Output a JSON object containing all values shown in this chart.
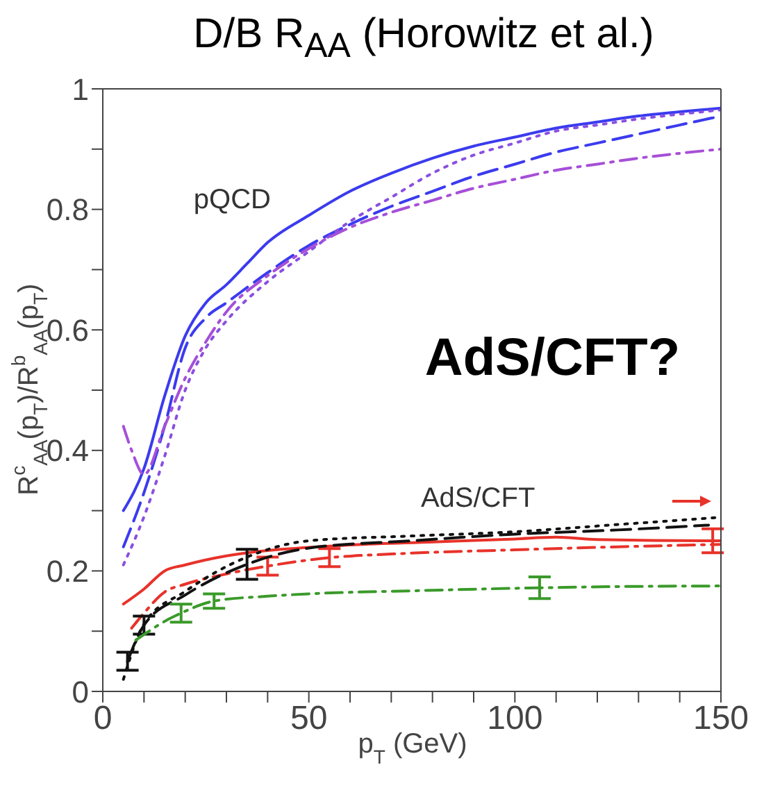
{
  "chart_data": {
    "type": "line",
    "title": "D/B R$_{AA}$ (Horowitz et al.)",
    "xlabel": "p$_{T}$ (GeV)",
    "ylabel": "R$^{c}$$_{AA}$(p$_{T}$)/R$^{b}$$_{AA}$(p$_{T}$)",
    "xlim": [
      0,
      150
    ],
    "ylim": [
      0,
      1
    ],
    "xticks": [
      0,
      {
        "value": 10,
        "label": null
      },
      {
        "value": 20,
        "label": null
      },
      {
        "value": 30,
        "label": null
      },
      {
        "value": 40,
        "label": null
      },
      50,
      {
        "value": 60,
        "label": null
      },
      {
        "value": 70,
        "label": null
      },
      {
        "value": 80,
        "label": null
      },
      {
        "value": 90,
        "label": null
      },
      100,
      {
        "value": 110,
        "label": null
      },
      {
        "value": 120,
        "label": null
      },
      {
        "value": 130,
        "label": null
      },
      {
        "value": 140,
        "label": null
      },
      150
    ],
    "yticks": [
      0,
      {
        "value": 0.1,
        "label": null
      },
      0.2,
      {
        "value": 0.3,
        "label": null
      },
      0.4,
      {
        "value": 0.5,
        "label": null
      },
      0.6,
      {
        "value": 0.7,
        "label": null
      },
      0.8,
      {
        "value": 0.9,
        "label": null
      },
      1
    ],
    "marker": "none",
    "annotations": [
      "pQCD",
      "AdS/CFT",
      "AdS/CFT?"
    ],
    "series": [
      {
        "color": "#3b3bef",
        "line_style": "solid",
        "x": [
          5,
          10,
          15,
          20,
          25,
          30,
          35,
          40,
          50,
          60,
          70,
          80,
          90,
          100,
          110,
          120,
          130,
          140,
          150
        ],
        "values": [
          0.3,
          0.37,
          0.49,
          0.59,
          0.645,
          0.675,
          0.71,
          0.745,
          0.79,
          0.83,
          0.86,
          0.885,
          0.905,
          0.92,
          0.935,
          0.945,
          0.955,
          0.962,
          0.968
        ]
      },
      {
        "color": "#3b3bef",
        "line_style": "dashed",
        "x": [
          5,
          10,
          15,
          20,
          25,
          30,
          40,
          50,
          60,
          70,
          80,
          90,
          100,
          110,
          120,
          130,
          140,
          150
        ],
        "values": [
          0.24,
          0.33,
          0.44,
          0.57,
          0.62,
          0.645,
          0.695,
          0.74,
          0.775,
          0.805,
          0.83,
          0.855,
          0.875,
          0.895,
          0.91,
          0.925,
          0.94,
          0.955
        ]
      },
      {
        "color": "#8a4fe0",
        "line_style": "dotted",
        "x": [
          5,
          10,
          15,
          20,
          25,
          30,
          40,
          50,
          60,
          70,
          80,
          90,
          100,
          110,
          120,
          130,
          140,
          150
        ],
        "values": [
          0.21,
          0.29,
          0.39,
          0.5,
          0.57,
          0.615,
          0.68,
          0.73,
          0.78,
          0.82,
          0.86,
          0.89,
          0.91,
          0.93,
          0.94,
          0.95,
          0.958,
          0.965
        ]
      },
      {
        "color": "#a64fd8",
        "line_style": "dashdot",
        "x": [
          5,
          7,
          10,
          15,
          20,
          25,
          30,
          40,
          50,
          60,
          70,
          80,
          90,
          100,
          110,
          120,
          130,
          140,
          150
        ],
        "values": [
          0.44,
          0.4,
          0.36,
          0.44,
          0.52,
          0.58,
          0.63,
          0.69,
          0.735,
          0.77,
          0.795,
          0.815,
          0.835,
          0.85,
          0.865,
          0.875,
          0.885,
          0.893,
          0.9
        ]
      },
      {
        "color": "#e8322a",
        "line_style": "solid",
        "x": [
          5,
          10,
          15,
          20,
          30,
          40,
          50,
          60,
          80,
          100,
          110,
          120,
          148,
          150
        ],
        "values": [
          0.145,
          0.17,
          0.2,
          0.21,
          0.225,
          0.234,
          0.239,
          0.243,
          0.248,
          0.253,
          0.256,
          0.252,
          0.25,
          0.25
        ],
        "errors": [
          null,
          null,
          null,
          null,
          null,
          null,
          null,
          null,
          null,
          null,
          null,
          null,
          0.02,
          null
        ]
      },
      {
        "color": "#e8322a",
        "line_style": "dashdot",
        "x": [
          7,
          10,
          15,
          20,
          30,
          40,
          55,
          70,
          100,
          125,
          150
        ],
        "values": [
          0.105,
          0.13,
          0.165,
          0.178,
          0.195,
          0.208,
          0.222,
          0.228,
          0.235,
          0.24,
          0.244
        ],
        "errors": [
          null,
          null,
          null,
          null,
          null,
          0.015,
          0.015,
          null,
          null,
          null,
          null
        ]
      },
      {
        "color": "#111111",
        "line_style": "dotted",
        "x": [
          5,
          10,
          20,
          35,
          50,
          75,
          100,
          125,
          150
        ],
        "values": [
          0.02,
          0.112,
          0.166,
          0.223,
          0.25,
          0.258,
          0.265,
          0.277,
          0.289
        ]
      },
      {
        "color": "#111111",
        "line_style": "dashed",
        "x": [
          6,
          10,
          20,
          35,
          50,
          75,
          100,
          125,
          147
        ],
        "values": [
          0.05,
          0.11,
          0.16,
          0.211,
          0.238,
          0.25,
          0.261,
          0.268,
          0.276
        ],
        "errors": [
          0.015,
          0.015,
          null,
          0.025,
          null,
          null,
          null,
          null,
          null
        ]
      },
      {
        "color": "#3a9a2a",
        "line_style": "dashdot",
        "x": [
          8,
          16,
          19,
          27,
          40,
          50,
          75,
          106,
          125,
          150
        ],
        "values": [
          0.085,
          0.12,
          0.13,
          0.15,
          0.158,
          0.162,
          0.167,
          0.172,
          0.174,
          0.175
        ],
        "errors": [
          null,
          null,
          0.015,
          0.012,
          null,
          null,
          null,
          0.018,
          null,
          null
        ]
      }
    ]
  }
}
